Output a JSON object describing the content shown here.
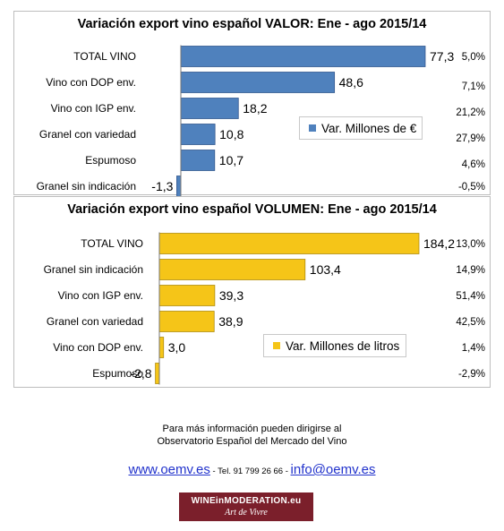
{
  "chart_data": [
    {
      "type": "bar",
      "orientation": "horizontal",
      "title": "Variación export vino español VALOR: Ene - ago 2015/14",
      "categories": [
        "TOTAL VINO",
        "Vino con DOP env.",
        "Vino con IGP env.",
        "Granel con variedad",
        "Espumoso",
        "Granel sin indicación"
      ],
      "series": [
        {
          "name": "Var. Millones de €",
          "values": [
            77.3,
            48.6,
            18.2,
            10.8,
            10.7,
            -1.3
          ],
          "color": "#4f81bd"
        }
      ],
      "value_labels": [
        "77,3",
        "48,6",
        "18,2",
        "10,8",
        "10,7",
        "-1,3"
      ],
      "percent_labels": [
        "5,0%",
        "7,1%",
        "21,2%",
        "27,9%",
        "4,6%",
        "-0,5%"
      ],
      "legend_position": "right-middle",
      "grid": false,
      "xlim": [
        -1.3,
        77.3
      ]
    },
    {
      "type": "bar",
      "orientation": "horizontal",
      "title": "Variación export vino español VOLUMEN: Ene - ago 2015/14",
      "categories": [
        "TOTAL VINO",
        "Granel sin indicación",
        "Vino con IGP env.",
        "Granel con variedad",
        "Vino con DOP env.",
        "Espumoso"
      ],
      "series": [
        {
          "name": "Var. Millones de litros",
          "values": [
            184.2,
            103.4,
            39.3,
            38.9,
            3.0,
            -2.8
          ],
          "color": "#f5c518"
        }
      ],
      "value_labels": [
        "184,2",
        "103,4",
        "39,3",
        "38,9",
        "3,0",
        "-2,8"
      ],
      "percent_labels": [
        "13,0%",
        "14,9%",
        "51,4%",
        "42,5%",
        "1,4%",
        "-2,9%"
      ],
      "legend_position": "bottom-right",
      "grid": false,
      "xlim": [
        -2.8,
        184.2
      ]
    }
  ],
  "footer": {
    "info_line1": "Para más información pueden dirigirse al",
    "info_line2": "Observatorio Español del Mercado del Vino",
    "website": "www.oemv.es",
    "phone": " - Tel. 91 799 26 66 - ",
    "email": "info@oemv.es",
    "logo_line1": "WINEinMODERATION.eu",
    "logo_line2": "Art de Vivre"
  }
}
